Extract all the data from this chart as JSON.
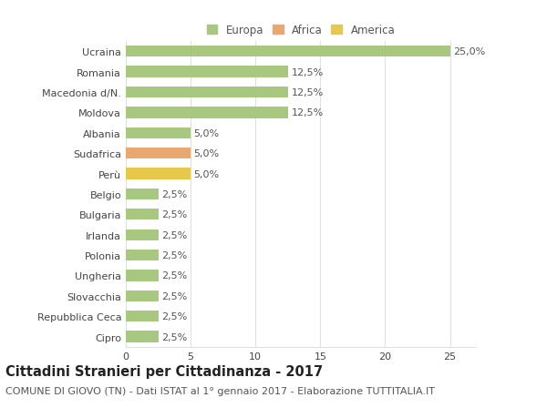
{
  "categories": [
    "Cipro",
    "Repubblica Ceca",
    "Slovacchia",
    "Ungheria",
    "Polonia",
    "Irlanda",
    "Bulgaria",
    "Belgio",
    "Perù",
    "Sudafrica",
    "Albania",
    "Moldova",
    "Macedonia d/N.",
    "Romania",
    "Ucraina"
  ],
  "values": [
    2.5,
    2.5,
    2.5,
    2.5,
    2.5,
    2.5,
    2.5,
    2.5,
    5.0,
    5.0,
    5.0,
    12.5,
    12.5,
    12.5,
    25.0
  ],
  "colors": [
    "#a8c880",
    "#a8c880",
    "#a8c880",
    "#a8c880",
    "#a8c880",
    "#a8c880",
    "#a8c880",
    "#a8c880",
    "#e8c84a",
    "#e8a870",
    "#a8c880",
    "#a8c880",
    "#a8c880",
    "#a8c880",
    "#a8c880"
  ],
  "labels": [
    "2,5%",
    "2,5%",
    "2,5%",
    "2,5%",
    "2,5%",
    "2,5%",
    "2,5%",
    "2,5%",
    "5,0%",
    "5,0%",
    "5,0%",
    "12,5%",
    "12,5%",
    "12,5%",
    "25,0%"
  ],
  "legend": [
    {
      "label": "Europa",
      "color": "#a8c880"
    },
    {
      "label": "Africa",
      "color": "#e8a870"
    },
    {
      "label": "America",
      "color": "#e8c84a"
    }
  ],
  "xlim": [
    0,
    27
  ],
  "xticks": [
    0,
    5,
    10,
    15,
    20,
    25
  ],
  "title": "Cittadini Stranieri per Cittadinanza - 2017",
  "subtitle": "COMUNE DI GIOVO (TN) - Dati ISTAT al 1° gennaio 2017 - Elaborazione TUTTITALIA.IT",
  "background_color": "#ffffff",
  "grid_color": "#e0e0e0",
  "bar_height": 0.55,
  "label_fontsize": 8,
  "title_fontsize": 10.5,
  "subtitle_fontsize": 8,
  "tick_fontsize": 8,
  "legend_fontsize": 8.5
}
